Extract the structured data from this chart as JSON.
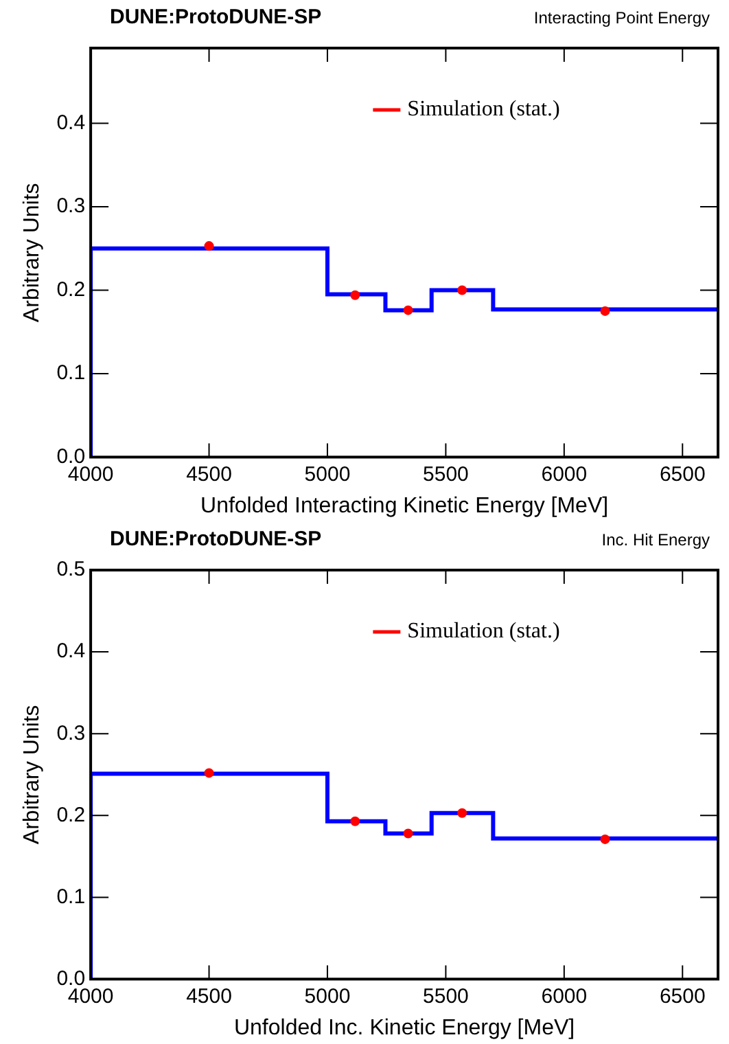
{
  "chart_data": [
    {
      "type": "histogram",
      "title": "DUNE:ProtoDUNE-SP",
      "subtitle": "Interacting Point Energy",
      "xlabel": "Unfolded Interacting Kinetic Energy [MeV]",
      "ylabel": "Arbitrary Units",
      "bins": [
        4000,
        5000,
        5245,
        5440,
        5700,
        6650
      ],
      "xlim": [
        4000,
        6650
      ],
      "xticks": [
        4000,
        4500,
        5000,
        5500,
        6000,
        6500
      ],
      "ylim": [
        0,
        0.49
      ],
      "yticks": [
        {
          "value": 0,
          "label": "0.0"
        },
        0.1,
        0.2,
        0.3,
        0.4
      ],
      "legend": "top right",
      "series": [
        {
          "type": "histogram",
          "color": "#0000ff",
          "values": [
            0.25,
            0.195,
            0.176,
            0.2,
            0.177
          ]
        },
        {
          "type": "scatter",
          "name": "Simulation (stat.)",
          "color": "#ff0000",
          "x": [
            4500,
            5117,
            5341,
            5569,
            6173
          ],
          "values": [
            0.253,
            0.194,
            0.176,
            0.2,
            0.175
          ],
          "errors": [
            0.005,
            0.005,
            0.004,
            0.005,
            0.004
          ]
        }
      ]
    },
    {
      "type": "histogram",
      "title": "DUNE:ProtoDUNE-SP",
      "subtitle": "Inc. Hit Energy",
      "xlabel": "Unfolded Inc. Kinetic Energy [MeV]",
      "ylabel": "Arbitrary Units",
      "bins": [
        4000,
        5000,
        5245,
        5440,
        5700,
        6650
      ],
      "xlim": [
        4000,
        6650
      ],
      "xticks": [
        4000,
        4500,
        5000,
        5500,
        6000,
        6500
      ],
      "ylim": [
        0,
        0.5
      ],
      "yticks": [
        {
          "value": 0,
          "label": "0.0"
        },
        0.1,
        0.2,
        0.3,
        0.4,
        0.5
      ],
      "legend": "top right",
      "series": [
        {
          "type": "histogram",
          "color": "#0000ff",
          "values": [
            0.251,
            0.193,
            0.178,
            0.203,
            0.172
          ]
        },
        {
          "type": "scatter",
          "name": "Simulation (stat.)",
          "color": "#ff0000",
          "x": [
            4500,
            5117,
            5341,
            5569,
            6173
          ],
          "values": [
            0.252,
            0.193,
            0.178,
            0.203,
            0.171
          ]
        }
      ]
    }
  ]
}
